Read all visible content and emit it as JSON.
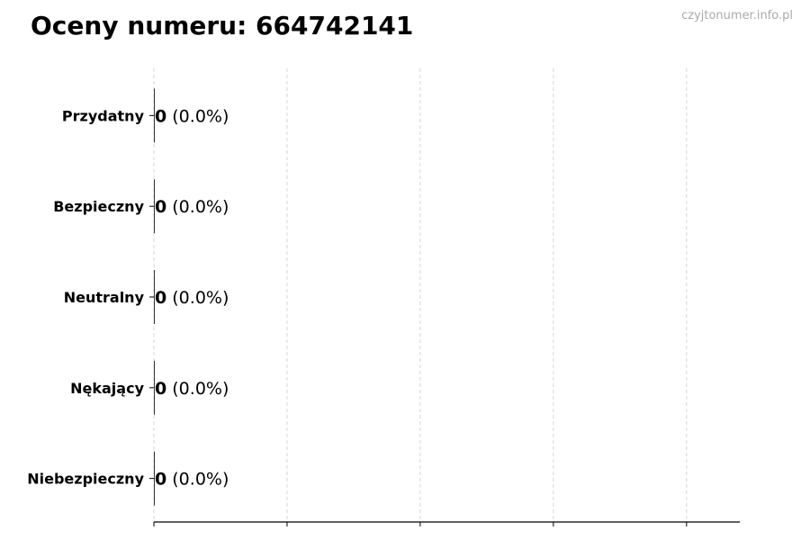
{
  "title": "Oceny numeru: 664742141",
  "watermark": "czyjtonumer.info.pl",
  "chart_data": {
    "type": "bar",
    "orientation": "horizontal",
    "title": "Oceny numeru: 664742141",
    "categories": [
      "Przydatny",
      "Bezpieczny",
      "Neutralny",
      "Nękający",
      "Niebezpieczny"
    ],
    "values": [
      0,
      0,
      0,
      0,
      0
    ],
    "data_labels": [
      {
        "count": "0",
        "percent": "(0.0%)"
      },
      {
        "count": "0",
        "percent": "(0.0%)"
      },
      {
        "count": "0",
        "percent": "(0.0%)"
      },
      {
        "count": "0",
        "percent": "(0.0%)"
      },
      {
        "count": "0",
        "percent": "(0.0%)"
      }
    ],
    "xlabel": "",
    "ylabel": "",
    "xlim": [
      0,
      4.4
    ],
    "xticks": [
      0,
      1,
      2,
      3,
      4
    ],
    "x_tick_labels_shown": false,
    "grid": "vertical dashed",
    "bar_color": "#333333"
  }
}
